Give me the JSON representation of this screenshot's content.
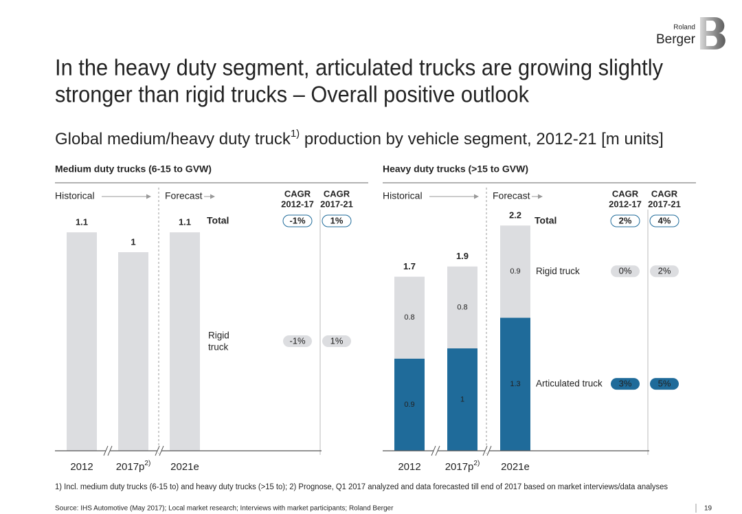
{
  "logo": {
    "top": "Roland",
    "bottom": "Berger"
  },
  "title": [
    "In the heavy duty segment, articulated trucks are growing slightly",
    "stronger than rigid trucks – Overall positive outlook"
  ],
  "subtitle": [
    "Global medium/heavy duty truck",
    "1)",
    " production by vehicle segment, 2012-21 [m units]"
  ],
  "chart_data": [
    {
      "type": "bar",
      "title": "Medium duty trucks (6-15 to GVW)",
      "historical": "Historical",
      "forecast": "Forecast",
      "cagr_headers": [
        [
          "CAGR",
          "2012-17"
        ],
        [
          "CAGR",
          "2017-21"
        ]
      ],
      "categories": [
        "2012",
        "2017p",
        "2021e"
      ],
      "category_notes": {
        "1": "2)"
      },
      "totals": [
        1.1,
        1.0,
        1.1
      ],
      "total_label": "Total",
      "total_cagr": [
        -1,
        1
      ],
      "total_cagr_labels": [
        "-1%",
        "1%"
      ],
      "series": [
        {
          "name": [
            "Rigid",
            "truck"
          ],
          "color": "#dcdde0",
          "cagr": [
            -1,
            1
          ],
          "cagr_labels": [
            "-1%",
            "1%"
          ],
          "pill_color": "#dcdde0",
          "pill_text_color": "#333333"
        }
      ]
    },
    {
      "type": "stacked_bar",
      "title": "Heavy duty trucks (>15 to GVW)",
      "historical": "Historical",
      "forecast": "Forecast",
      "cagr_headers": [
        [
          "CAGR",
          "2012-17"
        ],
        [
          "CAGR",
          "2017-21"
        ]
      ],
      "categories": [
        "2012",
        "2017p",
        "2021e"
      ],
      "category_notes": {
        "1": "2)"
      },
      "totals": [
        1.7,
        1.9,
        2.2
      ],
      "total_label": "Total",
      "total_cagr": [
        2,
        4
      ],
      "total_cagr_labels": [
        "2%",
        "4%"
      ],
      "series": [
        {
          "name": "Articulated truck",
          "color": "#1f6b9a",
          "label_color": "#ffffff",
          "values": [
            0.9,
            1.0,
            1.3
          ],
          "cagr": [
            3,
            5
          ],
          "cagr_labels": [
            "3%",
            "5%"
          ],
          "pill_color": "#1f6b9a",
          "pill_text_color": "#ffffff"
        },
        {
          "name": "Rigid truck",
          "color": "#dcdde0",
          "label_color": "#333333",
          "values": [
            0.8,
            0.8,
            0.9
          ],
          "cagr": [
            0,
            2
          ],
          "cagr_labels": [
            "0%",
            "2%"
          ],
          "pill_color": "#dcdde0",
          "pill_text_color": "#333333"
        }
      ]
    }
  ],
  "footnote": "1) Incl. medium duty trucks (6-15 to) and heavy duty trucks (>15 to); 2) Prognose, Q1 2017 analyzed and data forecasted till end of 2017 based on market interviews/data analyses",
  "source": "Source: IHS Automotive (May 2017); Local market research; Interviews with market participants; Roland Berger",
  "page_number": "19"
}
